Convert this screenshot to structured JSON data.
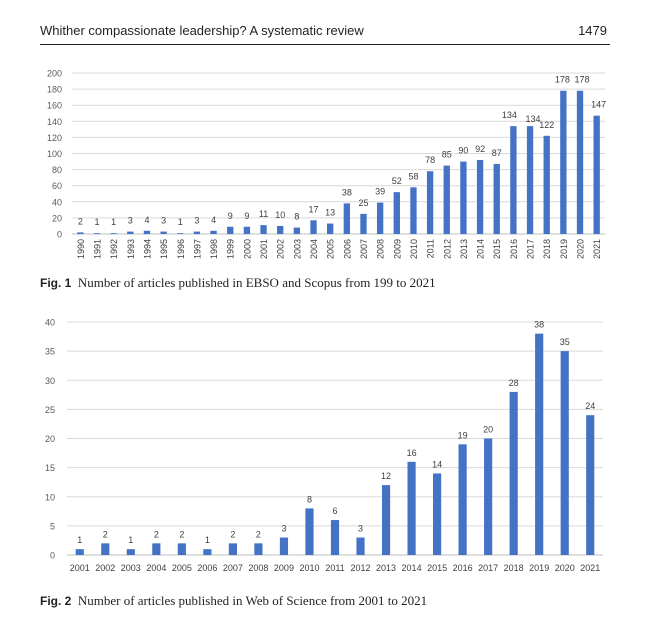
{
  "header": {
    "running_title": "Whither compassionate leadership? A systematic review",
    "page_number": "1479"
  },
  "figures": [
    {
      "label": "Fig. 1",
      "caption": "Number of articles published in EBSO and Scopus from 199 to 2021"
    },
    {
      "label": "Fig. 2",
      "caption": "Number of articles published in Web of Science from 2001 to 2021"
    }
  ],
  "chart_data": [
    {
      "type": "bar",
      "categories": [
        "1990",
        "1991",
        "1992",
        "1993",
        "1994",
        "1995",
        "1996",
        "1997",
        "1998",
        "1999",
        "2000",
        "2001",
        "2002",
        "2003",
        "2004",
        "2005",
        "2006",
        "2007",
        "2008",
        "2009",
        "2010",
        "2011",
        "2012",
        "2013",
        "2014",
        "2015",
        "2016",
        "2017",
        "2018",
        "2019",
        "2020",
        "2021"
      ],
      "values": [
        2,
        1,
        1,
        3,
        4,
        3,
        1,
        3,
        4,
        9,
        9,
        11,
        10,
        8,
        17,
        13,
        38,
        25,
        39,
        52,
        58,
        78,
        85,
        90,
        92,
        87,
        134,
        134,
        122,
        178,
        178,
        147
      ],
      "ylim": [
        0,
        200
      ],
      "yticks": [
        0,
        20,
        40,
        60,
        80,
        100,
        120,
        140,
        160,
        180,
        200
      ],
      "grid": true,
      "bar_color": "#4472c4"
    },
    {
      "type": "bar",
      "categories": [
        "2001",
        "2002",
        "2003",
        "2004",
        "2005",
        "2006",
        "2007",
        "2008",
        "2009",
        "2010",
        "2011",
        "2012",
        "2013",
        "2014",
        "2015",
        "2016",
        "2017",
        "2018",
        "2019",
        "2020",
        "2021"
      ],
      "values": [
        1,
        2,
        1,
        2,
        2,
        1,
        2,
        2,
        3,
        8,
        6,
        3,
        12,
        16,
        14,
        19,
        20,
        28,
        38,
        35,
        24
      ],
      "ylim": [
        0,
        40
      ],
      "yticks": [
        0,
        5,
        10,
        15,
        20,
        25,
        30,
        35,
        40
      ],
      "grid": true,
      "bar_color": "#4472c4"
    }
  ]
}
